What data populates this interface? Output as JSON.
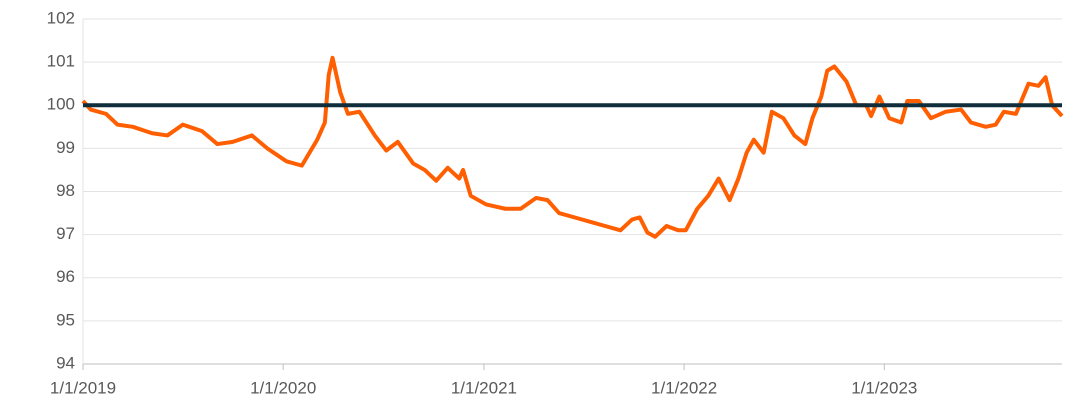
{
  "chart_data": {
    "type": "line",
    "x": [
      "1/1/2019",
      "1/15/2019",
      "2/12/2019",
      "3/5/2019",
      "4/2/2019",
      "5/7/2019",
      "6/4/2019",
      "7/2/2019",
      "8/6/2019",
      "9/3/2019",
      "10/1/2019",
      "11/5/2019",
      "12/3/2019",
      "1/7/2020",
      "2/4/2020",
      "3/3/2020",
      "3/17/2020",
      "3/24/2020",
      "3/31/2020",
      "4/14/2020",
      "4/28/2020",
      "5/19/2020",
      "6/16/2020",
      "7/7/2020",
      "7/28/2020",
      "8/25/2020",
      "9/15/2020",
      "10/6/2020",
      "10/27/2020",
      "11/17/2020",
      "11/24/2020",
      "12/8/2020",
      "1/5/2021",
      "2/9/2021",
      "3/9/2021",
      "4/6/2021",
      "4/27/2021",
      "5/18/2021",
      "6/15/2021",
      "7/13/2021",
      "8/10/2021",
      "9/7/2021",
      "9/28/2021",
      "10/12/2021",
      "10/26/2021",
      "11/9/2021",
      "11/30/2021",
      "12/21/2021",
      "1/4/2022",
      "1/25/2022",
      "2/14/2022",
      "3/5/2022",
      "3/25/2022",
      "4/10/2022",
      "4/25/2022",
      "5/8/2022",
      "5/26/2022",
      "6/10/2022",
      "7/1/2022",
      "7/21/2022",
      "8/10/2022",
      "8/23/2022",
      "9/8/2022",
      "9/19/2022",
      "10/2/2022",
      "10/24/2022",
      "11/11/2022",
      "11/29/2022",
      "12/8/2022",
      "12/23/2022",
      "1/10/2023",
      "2/1/2023",
      "2/12/2023",
      "3/5/2023",
      "3/27/2023",
      "4/23/2023",
      "5/21/2023",
      "6/8/2023",
      "7/5/2023",
      "7/23/2023",
      "8/7/2023",
      "8/29/2023",
      "9/21/2023",
      "10/9/2023",
      "10/22/2023",
      "11/3/2023",
      "11/21/2023"
    ],
    "series": [
      {
        "color": "#ff5f00",
        "values": [
          100.1,
          99.9,
          99.8,
          99.55,
          99.5,
          99.35,
          99.3,
          99.55,
          99.4,
          99.1,
          99.15,
          99.3,
          99.0,
          98.7,
          98.6,
          99.2,
          99.6,
          100.7,
          101.1,
          100.3,
          99.8,
          99.85,
          99.3,
          98.95,
          99.15,
          98.65,
          98.5,
          98.25,
          98.55,
          98.3,
          98.5,
          97.9,
          97.7,
          97.6,
          97.6,
          97.85,
          97.8,
          97.5,
          97.4,
          97.3,
          97.2,
          97.1,
          97.35,
          97.4,
          97.05,
          96.95,
          97.2,
          97.1,
          97.1,
          97.6,
          97.9,
          98.3,
          97.8,
          98.3,
          98.9,
          99.2,
          98.9,
          99.85,
          99.7,
          99.3,
          99.1,
          99.7,
          100.2,
          100.8,
          100.9,
          100.55,
          100.0,
          100.0,
          99.75,
          100.2,
          99.7,
          99.6,
          100.1,
          100.1,
          99.7,
          99.85,
          99.9,
          99.6,
          99.5,
          99.55,
          99.85,
          99.8,
          100.5,
          100.45,
          100.65,
          100.0,
          99.75
        ]
      }
    ],
    "reference_line": {
      "value": 100,
      "color": "#0f2d3a"
    },
    "xlim": [
      "1/1/2019",
      "11/21/2023"
    ],
    "xticks": [
      "1/1/2019",
      "1/1/2020",
      "1/1/2021",
      "1/1/2022",
      "1/1/2023"
    ],
    "ylim": [
      94,
      102
    ],
    "yticks": [
      94,
      95,
      96,
      97,
      98,
      99,
      100,
      101,
      102
    ],
    "grid": true
  }
}
